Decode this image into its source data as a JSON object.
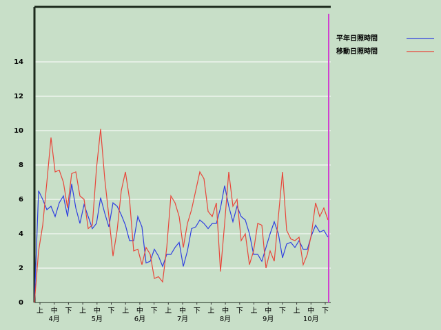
{
  "chart_data": {
    "type": "line",
    "dekad_labels": [
      "上",
      "中",
      "下",
      "上",
      "中",
      "下",
      "上",
      "中",
      "下",
      "上",
      "中",
      "下",
      "上",
      "中",
      "下",
      "上",
      "中",
      "下",
      "上",
      "中",
      "下"
    ],
    "month_labels": [
      "4月",
      "5月",
      "6月",
      "7月",
      "8月",
      "9月",
      "10月"
    ],
    "ylim": [
      0,
      17.2
    ],
    "yticks": [
      0,
      2,
      4,
      6,
      8,
      10,
      12,
      14
    ],
    "grid": true,
    "series": [
      {
        "name": "平年日照時間",
        "color": "#2f3fe0",
        "values": [
          0,
          6.5,
          6.0,
          5.4,
          5.6,
          5.0,
          5.8,
          6.2,
          5.0,
          6.9,
          5.5,
          4.6,
          5.7,
          5.0,
          4.3,
          4.6,
          6.1,
          5.2,
          4.4,
          5.8,
          5.6,
          5.1,
          4.5,
          3.6,
          3.6,
          5.0,
          4.4,
          2.3,
          2.4,
          3.1,
          2.7,
          2.1,
          2.8,
          2.8,
          3.2,
          3.5,
          2.1,
          3.0,
          4.3,
          4.4,
          4.8,
          4.6,
          4.3,
          4.6,
          4.6,
          5.5,
          6.8,
          5.6,
          4.7,
          5.6,
          5.0,
          4.8,
          4.0,
          2.8,
          2.8,
          2.4,
          3.2,
          4.0,
          4.7,
          4.0,
          2.6,
          3.4,
          3.5,
          3.2,
          3.6,
          3.1,
          3.1,
          3.9,
          4.5,
          4.1,
          4.2,
          3.8
        ]
      },
      {
        "name": "移動日照時間",
        "color": "#e8463a",
        "values": [
          0,
          3.0,
          4.5,
          7.0,
          9.6,
          7.6,
          7.7,
          7.0,
          5.5,
          7.5,
          7.6,
          6.2,
          6.0,
          4.3,
          4.5,
          7.8,
          10.1,
          7.2,
          5.0,
          2.7,
          4.2,
          6.5,
          7.6,
          6.0,
          3.0,
          3.1,
          2.2,
          3.2,
          2.8,
          1.4,
          1.5,
          1.2,
          3.2,
          6.2,
          5.8,
          5.0,
          3.2,
          4.6,
          5.4,
          6.5,
          7.6,
          7.2,
          5.3,
          5.0,
          5.8,
          1.8,
          4.6,
          7.6,
          5.6,
          6.0,
          3.6,
          4.0,
          2.2,
          3.0,
          4.6,
          4.5,
          2.0,
          3.0,
          2.4,
          5.0,
          7.6,
          4.2,
          3.7,
          3.6,
          3.8,
          2.2,
          2.8,
          4.0,
          5.8,
          5.0,
          5.5,
          4.8
        ]
      }
    ]
  }
}
